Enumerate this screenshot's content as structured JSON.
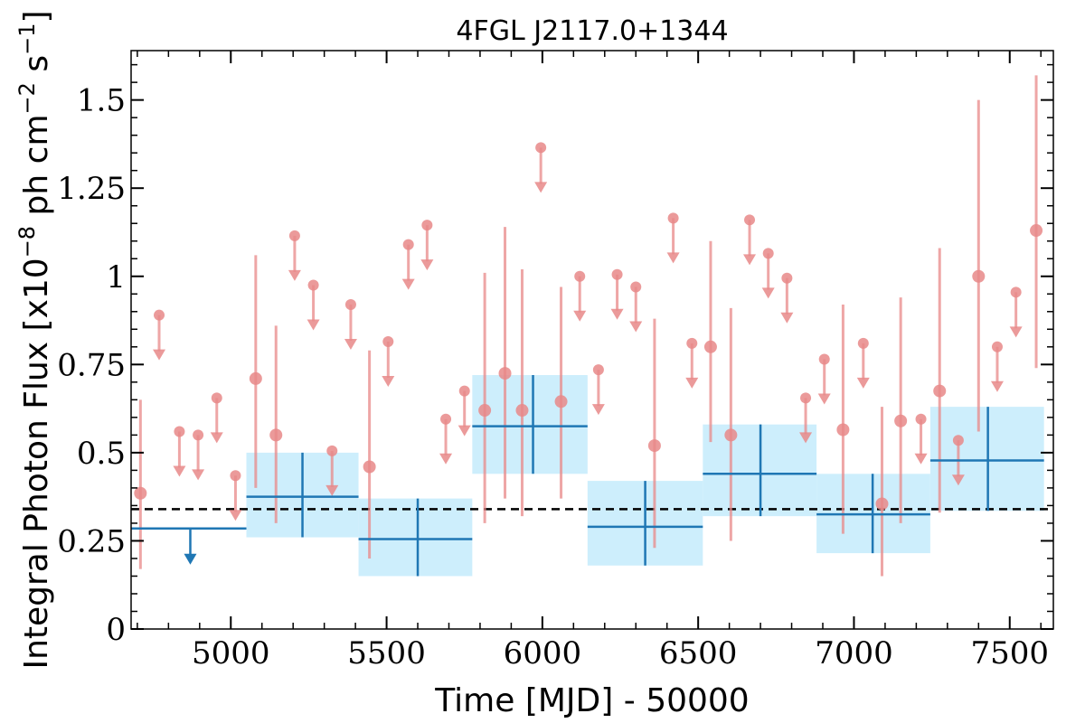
{
  "chart_data": {
    "type": "scatter",
    "title": "4FGL J2117.0+1344",
    "xlabel": "Time [MJD] - 50000",
    "ylabel": "Integral Photon Flux [x10",
    "ylabel_exp1": "−8",
    "ylabel_mid": " ph cm",
    "ylabel_exp2": "−2",
    "ylabel_mid2": " s",
    "ylabel_exp3": "−1",
    "ylabel_end": "]",
    "xlim": [
      4680,
      7640
    ],
    "ylim": [
      0,
      1.64
    ],
    "xticks": [
      5000,
      5500,
      6000,
      6500,
      7000,
      7500
    ],
    "xtick_labels": [
      "5000",
      "5500",
      "6000",
      "6500",
      "7000",
      "7500"
    ],
    "yticks": [
      0,
      0.25,
      0.5,
      0.75,
      1.0,
      1.25,
      1.5
    ],
    "ytick_labels": [
      "0",
      "0.25",
      "0.5",
      "0.75",
      "1",
      "1.25",
      "1.5"
    ],
    "grid": false,
    "legend": "none",
    "reference_line": {
      "y": 0.34,
      "style": "dashed",
      "color": "#000000"
    },
    "colors": {
      "short_bins": "#e88888",
      "long_bins": "#1f77b4",
      "long_bins_band": "#cdeefc"
    },
    "series": [
      {
        "kind": "long-bins",
        "detections": [
          {
            "x": 5230,
            "xlo": 5050,
            "xhi": 5410,
            "y": 0.375,
            "ylo": 0.26,
            "yhi": 0.5
          },
          {
            "x": 5600,
            "xlo": 5410,
            "xhi": 5775,
            "y": 0.255,
            "ylo": 0.15,
            "yhi": 0.37
          },
          {
            "x": 5970,
            "xlo": 5775,
            "xhi": 6145,
            "y": 0.575,
            "ylo": 0.44,
            "yhi": 0.72
          },
          {
            "x": 6330,
            "xlo": 6145,
            "xhi": 6515,
            "y": 0.29,
            "ylo": 0.18,
            "yhi": 0.42
          },
          {
            "x": 6700,
            "xlo": 6515,
            "xhi": 6880,
            "y": 0.44,
            "ylo": 0.32,
            "yhi": 0.58
          },
          {
            "x": 7060,
            "xlo": 6880,
            "xhi": 7245,
            "y": 0.325,
            "ylo": 0.215,
            "yhi": 0.44
          },
          {
            "x": 7430,
            "xlo": 7245,
            "xhi": 7610,
            "y": 0.478,
            "ylo": 0.335,
            "yhi": 0.63
          }
        ],
        "upper_limits": [
          {
            "x": 4870,
            "xlo": 4680,
            "xhi": 5050,
            "y": 0.285
          }
        ]
      },
      {
        "kind": "short-bins",
        "detections": [
          {
            "x": 4710,
            "y": 0.385,
            "ylo": 0.17,
            "yhi": 0.65
          },
          {
            "x": 5080,
            "y": 0.71,
            "ylo": 0.4,
            "yhi": 1.06
          },
          {
            "x": 5145,
            "y": 0.55,
            "ylo": 0.3,
            "yhi": 0.86
          },
          {
            "x": 5445,
            "y": 0.46,
            "ylo": 0.2,
            "yhi": 0.79
          },
          {
            "x": 5815,
            "y": 0.62,
            "ylo": 0.3,
            "yhi": 1.01
          },
          {
            "x": 5880,
            "y": 0.725,
            "ylo": 0.37,
            "yhi": 1.14
          },
          {
            "x": 5935,
            "y": 0.62,
            "ylo": 0.32,
            "yhi": 1.02
          },
          {
            "x": 6060,
            "y": 0.645,
            "ylo": 0.37,
            "yhi": 0.97
          },
          {
            "x": 6360,
            "y": 0.52,
            "ylo": 0.23,
            "yhi": 0.88
          },
          {
            "x": 6540,
            "y": 0.8,
            "ylo": 0.53,
            "yhi": 1.1
          },
          {
            "x": 6605,
            "y": 0.55,
            "ylo": 0.25,
            "yhi": 0.91
          },
          {
            "x": 6965,
            "y": 0.565,
            "ylo": 0.27,
            "yhi": 0.92
          },
          {
            "x": 7090,
            "y": 0.355,
            "ylo": 0.15,
            "yhi": 0.63
          },
          {
            "x": 7150,
            "y": 0.59,
            "ylo": 0.3,
            "yhi": 0.94
          },
          {
            "x": 7275,
            "y": 0.675,
            "ylo": 0.33,
            "yhi": 1.08
          },
          {
            "x": 7400,
            "y": 1.0,
            "ylo": 0.56,
            "yhi": 1.5
          },
          {
            "x": 7585,
            "y": 1.13,
            "ylo": 0.74,
            "yhi": 1.57
          }
        ],
        "upper_limits": [
          {
            "x": 4770,
            "y": 0.89
          },
          {
            "x": 4835,
            "y": 0.56
          },
          {
            "x": 4895,
            "y": 0.55
          },
          {
            "x": 4955,
            "y": 0.655
          },
          {
            "x": 5015,
            "y": 0.435
          },
          {
            "x": 5205,
            "y": 1.115
          },
          {
            "x": 5265,
            "y": 0.975
          },
          {
            "x": 5325,
            "y": 0.505
          },
          {
            "x": 5385,
            "y": 0.92
          },
          {
            "x": 5505,
            "y": 0.815
          },
          {
            "x": 5570,
            "y": 1.09
          },
          {
            "x": 5630,
            "y": 1.145
          },
          {
            "x": 5690,
            "y": 0.595
          },
          {
            "x": 5750,
            "y": 0.675
          },
          {
            "x": 5995,
            "y": 1.365
          },
          {
            "x": 6120,
            "y": 1.0
          },
          {
            "x": 6180,
            "y": 0.735
          },
          {
            "x": 6240,
            "y": 1.005
          },
          {
            "x": 6300,
            "y": 0.97
          },
          {
            "x": 6420,
            "y": 1.165
          },
          {
            "x": 6480,
            "y": 0.81
          },
          {
            "x": 6665,
            "y": 1.16
          },
          {
            "x": 6725,
            "y": 1.065
          },
          {
            "x": 6785,
            "y": 0.995
          },
          {
            "x": 6845,
            "y": 0.655
          },
          {
            "x": 6905,
            "y": 0.765
          },
          {
            "x": 7030,
            "y": 0.81
          },
          {
            "x": 7215,
            "y": 0.595
          },
          {
            "x": 7335,
            "y": 0.535
          },
          {
            "x": 7460,
            "y": 0.8
          },
          {
            "x": 7520,
            "y": 0.955
          }
        ]
      }
    ]
  }
}
